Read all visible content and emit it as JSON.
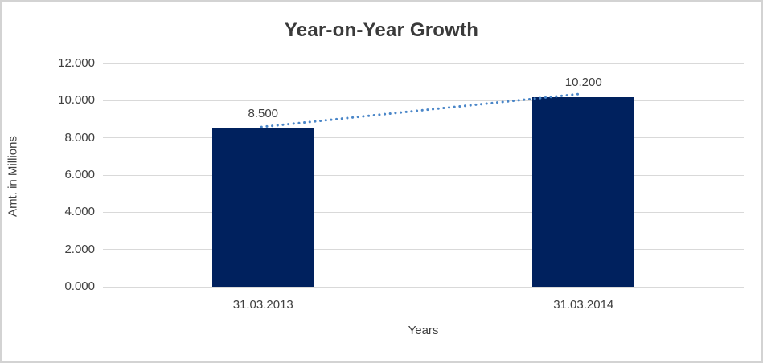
{
  "chart_data": {
    "type": "bar",
    "title": "Year-on-Year Growth",
    "xlabel": "Years",
    "ylabel": "Amt. in Millions",
    "categories": [
      "31.03.2013",
      "31.03.2014"
    ],
    "values": [
      8.5,
      10.2
    ],
    "value_labels": [
      "8.500",
      "10.200"
    ],
    "ylim": [
      0,
      12
    ],
    "y_ticks": [
      0,
      2,
      4,
      6,
      8,
      10,
      12
    ],
    "y_tick_labels": [
      "0.000",
      "2.000",
      "4.000",
      "6.000",
      "8.000",
      "10.000",
      "12.000"
    ],
    "grid": "horizontal",
    "legend": "none",
    "trendline": {
      "style": "dotted",
      "connects": "bar tops from 8.500 to 10.200"
    },
    "colors": {
      "bar": "#00215e",
      "trendline": "#4a86c8",
      "gridline": "#d9d9d9",
      "text": "#404040",
      "frame_border": "#d3d3d3",
      "background": "#ffffff"
    }
  }
}
